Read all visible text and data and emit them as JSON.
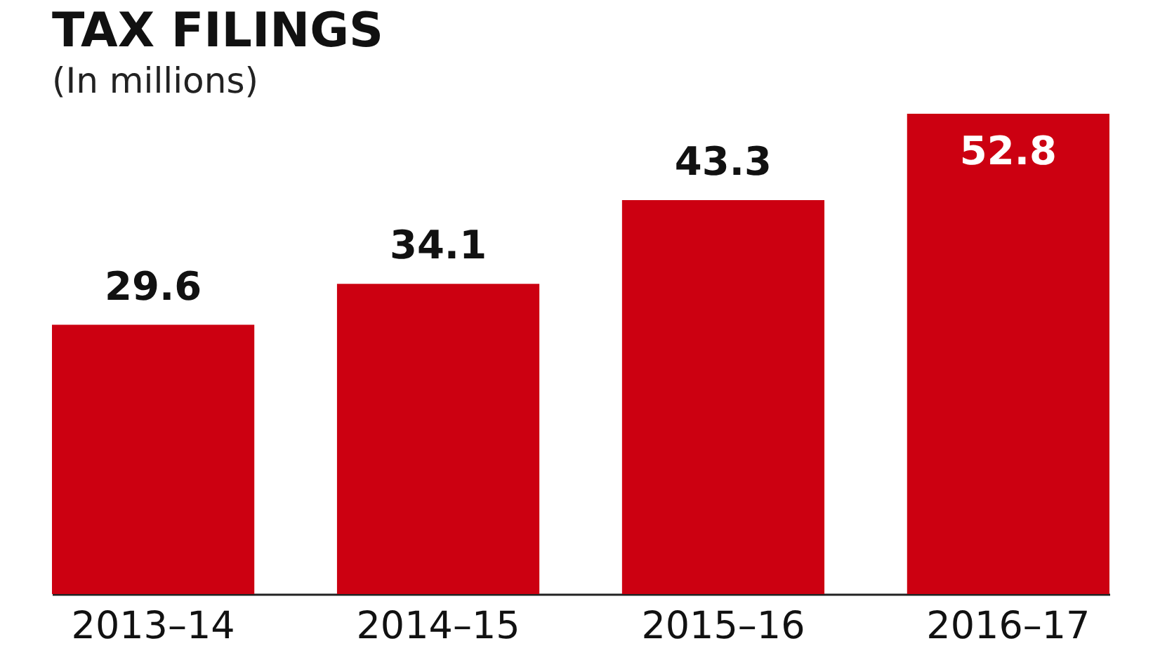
{
  "chart_data": {
    "type": "bar",
    "title": "TAX FILINGS",
    "subtitle": "(In millions)",
    "categories": [
      "2013–14",
      "2014–15",
      "2015–16",
      "2016–17"
    ],
    "values": [
      29.6,
      34.1,
      43.3,
      52.8
    ],
    "color": "#cc0011",
    "data_labels": true,
    "grid": false,
    "legend": false
  }
}
